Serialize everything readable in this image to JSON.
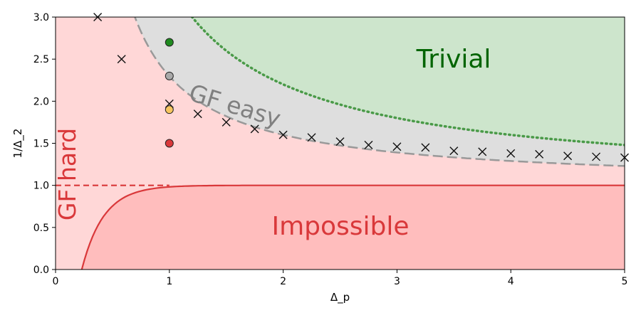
{
  "chart_data": {
    "type": "scatter",
    "xlabel": "Δ_p",
    "ylabel": "1/Δ_2",
    "xlim": [
      0,
      5
    ],
    "ylim": [
      0,
      3
    ],
    "xticks": [
      0,
      1,
      2,
      3,
      4,
      5
    ],
    "yticks": [
      0.0,
      0.5,
      1.0,
      1.5,
      2.0,
      2.5,
      3.0
    ],
    "xtick_labels": [
      "0",
      "1",
      "2",
      "3",
      "4",
      "5"
    ],
    "ytick_labels": [
      "0.0",
      "0.5",
      "1.0",
      "1.5",
      "2.0",
      "2.5",
      "3.0"
    ],
    "grid": false,
    "region_labels": {
      "trivial": "Trivial",
      "gf_easy": "GF easy",
      "gf_hard": "GF hard",
      "impossible": "Impossible"
    },
    "colors": {
      "trivial_fill": "#cde5cc",
      "gf_easy_fill": "#dedede",
      "gf_hard_fill": "#ffd7d7",
      "impossible_fill": "#ffbdbd",
      "trivial_text": "#006400",
      "gf_easy_text": "#808080",
      "red_text": "#d9383a",
      "trivial_boundary": "#4a9a48",
      "gf_easy_boundary": "#999999",
      "impossible_boundary": "#d9383a"
    },
    "crosses": {
      "x": [
        0.37,
        0.58,
        1.0,
        1.25,
        1.5,
        1.75,
        2.0,
        2.25,
        2.5,
        2.75,
        3.0,
        3.25,
        3.5,
        3.75,
        4.0,
        4.25,
        4.5,
        4.75,
        5.0
      ],
      "y": [
        3.0,
        2.5,
        1.97,
        1.85,
        1.75,
        1.67,
        1.6,
        1.57,
        1.52,
        1.48,
        1.46,
        1.45,
        1.41,
        1.4,
        1.38,
        1.37,
        1.35,
        1.34,
        1.33
      ]
    },
    "points": [
      {
        "x": 1.0,
        "y": 2.7,
        "color": "#1f8a1f"
      },
      {
        "x": 1.0,
        "y": 2.3,
        "color": "#a9a9a9"
      },
      {
        "x": 1.0,
        "y": 1.9,
        "color": "#f7c55f"
      },
      {
        "x": 1.0,
        "y": 1.5,
        "color": "#d9383a"
      }
    ]
  }
}
